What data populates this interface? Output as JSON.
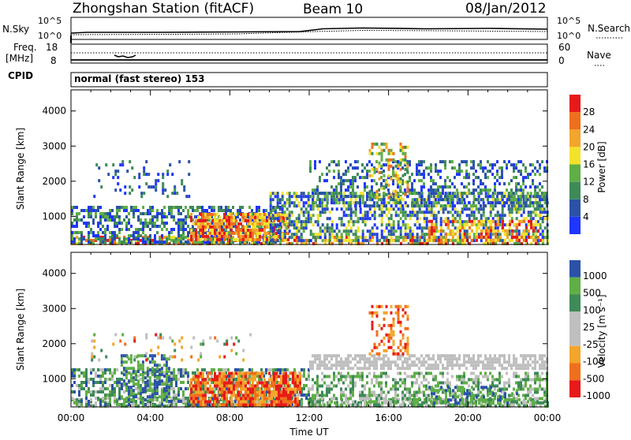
{
  "header": {
    "station": "Zhongshan Station (fitACF)",
    "beam": "Beam 10",
    "date": "08/Jan/2012"
  },
  "top_panels": {
    "nsky": {
      "label": "N.Sky",
      "ticks_left": [
        "10^5",
        "10^0"
      ],
      "ticks_right": [
        "10^5",
        "10^0"
      ],
      "right_label": "N.Search"
    },
    "freq": {
      "label_line1": "Freq.",
      "label_line2": "[MHz]",
      "ticks_left": [
        "18",
        "8"
      ],
      "ticks_right": [
        "60",
        "0"
      ],
      "right_label": "Nave"
    },
    "cpid": {
      "label": "CPID",
      "value": "normal (fast stereo) 153"
    }
  },
  "colors": {
    "power_scale": [
      "#1f36ff",
      "#2b52a8",
      "#3e8a58",
      "#5fae46",
      "#f2e22c",
      "#f4a52b",
      "#ef6f1d",
      "#e71a1a"
    ],
    "velocity_scale": [
      "#e71a1a",
      "#ef6f1d",
      "#f4a52b",
      "#bfbfbf",
      "#bfbfbf",
      "#3e8a58",
      "#5fae46",
      "#2b52a8"
    ]
  },
  "chart_data": [
    {
      "type": "heatmap",
      "name": "power",
      "ylabel": "Slant Range [km]",
      "xlabel": "",
      "ylim": [
        200,
        4600
      ],
      "xlim": [
        0,
        24
      ],
      "y_ticks": [
        "1000",
        "2000",
        "3000",
        "4000"
      ],
      "colorbar": {
        "label": "Power [dB]",
        "tick_labels": [
          "4",
          "8",
          "12",
          "16",
          "20",
          "24",
          "28"
        ],
        "range": [
          0,
          32
        ]
      }
    },
    {
      "type": "heatmap",
      "name": "velocity",
      "ylabel": "Slant Range [km]",
      "xlabel": "Time UT",
      "ylim": [
        200,
        4600
      ],
      "xlim": [
        0,
        24
      ],
      "y_ticks": [
        "1000",
        "2000",
        "3000",
        "4000"
      ],
      "x_ticks": [
        "00:00",
        "04:00",
        "08:00",
        "12:00",
        "16:00",
        "20:00",
        "00:00"
      ],
      "colorbar": {
        "label": "Velocity [m s⁻¹]",
        "tick_labels": [
          "1000",
          "500",
          "100",
          "25",
          "-25",
          "-100",
          "-500",
          "-1000"
        ]
      }
    }
  ]
}
